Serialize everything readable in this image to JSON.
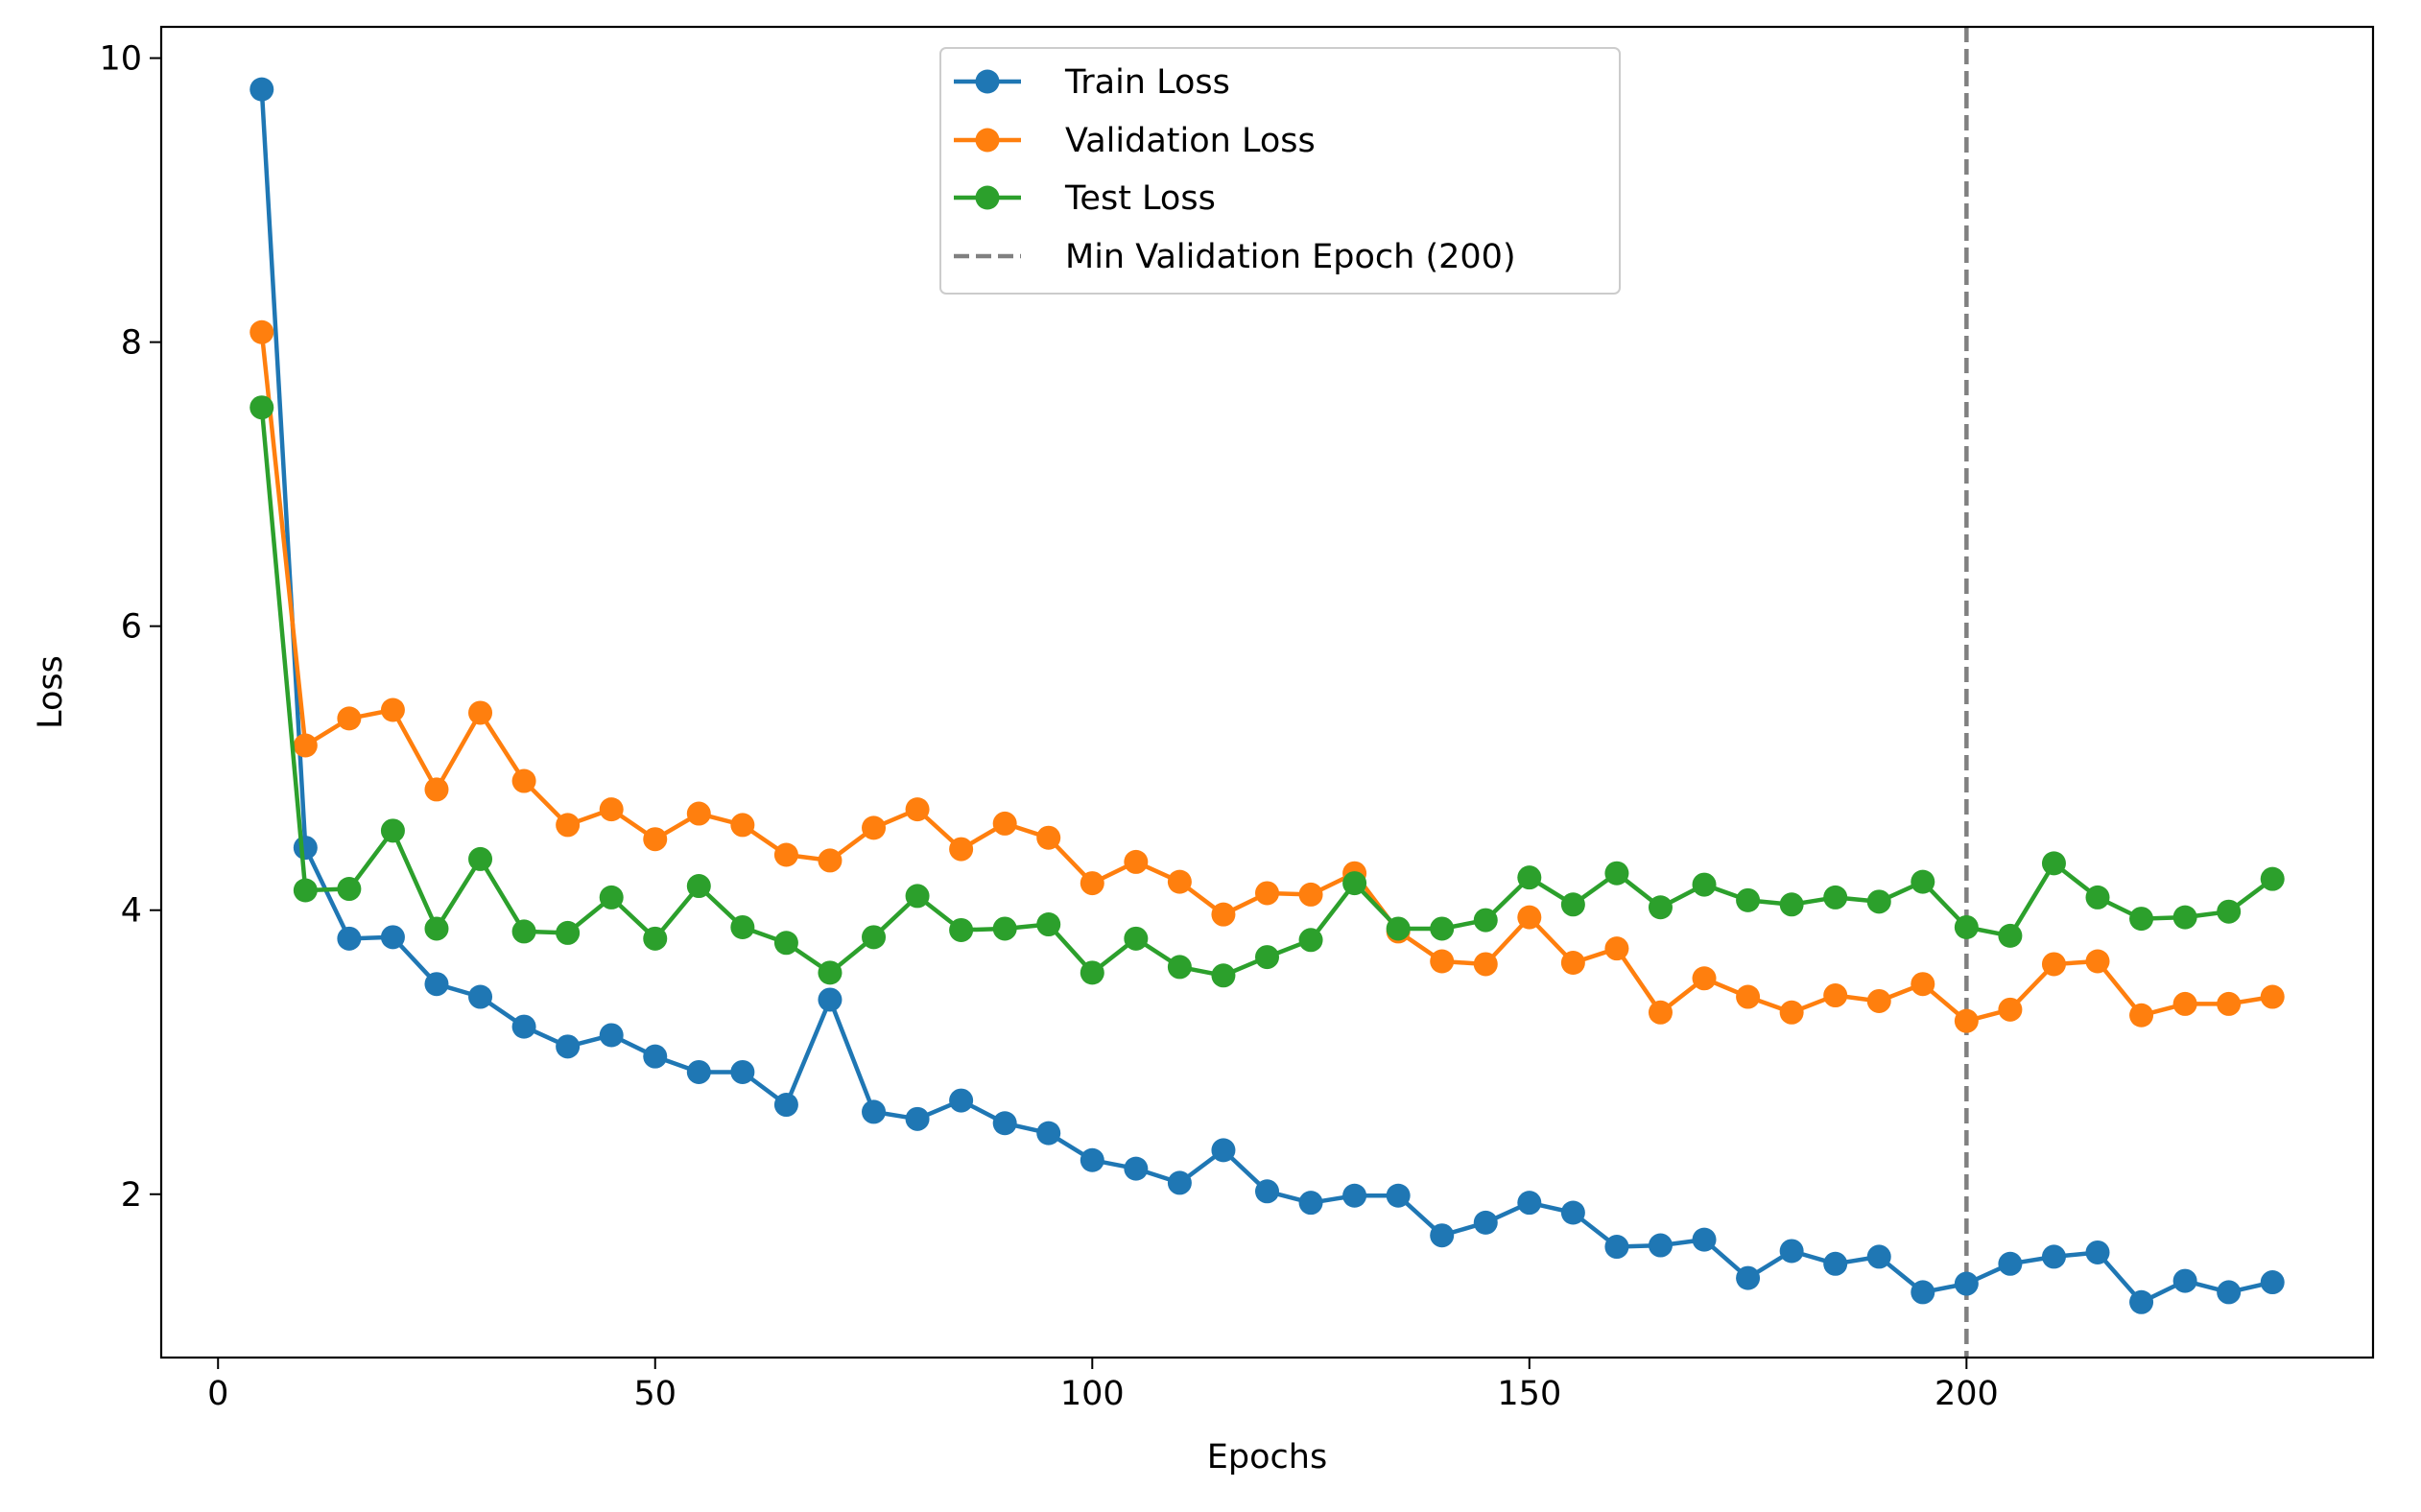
{
  "chart_data": {
    "type": "line",
    "title": "",
    "xlabel": "Epochs",
    "ylabel": "Loss",
    "xlim": [
      -6.5,
      246.5
    ],
    "ylim": [
      0.85,
      10.22
    ],
    "xticks": [
      0,
      50,
      100,
      150,
      200
    ],
    "yticks": [
      2,
      4,
      6,
      8,
      10
    ],
    "grid": false,
    "legend_position": "upper center",
    "x": [
      5,
      10,
      15,
      20,
      25,
      30,
      35,
      40,
      45,
      50,
      55,
      60,
      65,
      70,
      75,
      80,
      85,
      90,
      95,
      100,
      105,
      110,
      115,
      120,
      125,
      130,
      135,
      140,
      145,
      150,
      155,
      160,
      165,
      170,
      175,
      180,
      185,
      190,
      195,
      200,
      205,
      210,
      215,
      220,
      225,
      230,
      235
    ],
    "series": [
      {
        "name": "Train Loss",
        "color": "#1f77b4",
        "values": [
          9.78,
          4.44,
          3.8,
          3.81,
          3.48,
          3.39,
          3.18,
          3.04,
          3.12,
          2.97,
          2.86,
          2.86,
          2.63,
          3.37,
          2.58,
          2.53,
          2.66,
          2.5,
          2.43,
          2.24,
          2.18,
          2.08,
          2.31,
          2.02,
          1.94,
          1.99,
          1.99,
          1.71,
          1.8,
          1.94,
          1.87,
          1.63,
          1.64,
          1.68,
          1.41,
          1.6,
          1.51,
          1.56,
          1.31,
          1.37,
          1.51,
          1.56,
          1.59,
          1.24,
          1.39,
          1.31,
          1.38
        ]
      },
      {
        "name": "Validation Loss",
        "color": "#ff7f0e",
        "values": [
          8.07,
          5.16,
          5.35,
          5.41,
          4.85,
          5.39,
          4.91,
          4.6,
          4.71,
          4.5,
          4.68,
          4.6,
          4.39,
          4.35,
          4.58,
          4.71,
          4.43,
          4.61,
          4.51,
          4.19,
          4.34,
          4.2,
          3.97,
          4.12,
          4.11,
          4.26,
          3.85,
          3.64,
          3.62,
          3.95,
          3.63,
          3.73,
          3.28,
          3.52,
          3.39,
          3.28,
          3.4,
          3.36,
          3.48,
          3.22,
          3.3,
          3.62,
          3.64,
          3.26,
          3.34,
          3.34,
          3.39
        ]
      },
      {
        "name": "Test Loss",
        "color": "#2ca02c",
        "values": [
          7.54,
          4.14,
          4.15,
          4.56,
          3.87,
          4.36,
          3.85,
          3.84,
          4.09,
          3.8,
          4.17,
          3.88,
          3.77,
          3.56,
          3.81,
          4.1,
          3.86,
          3.87,
          3.9,
          3.56,
          3.8,
          3.6,
          3.54,
          3.67,
          3.79,
          4.19,
          3.87,
          3.87,
          3.93,
          4.23,
          4.04,
          4.26,
          4.02,
          4.18,
          4.07,
          4.04,
          4.09,
          4.06,
          4.2,
          3.88,
          3.82,
          4.33,
          4.09,
          3.94,
          3.95,
          3.99,
          4.22
        ]
      }
    ],
    "vline": {
      "name": "Min Validation Epoch (200)",
      "x": 200,
      "color": "#808080",
      "style": "dashed"
    }
  }
}
